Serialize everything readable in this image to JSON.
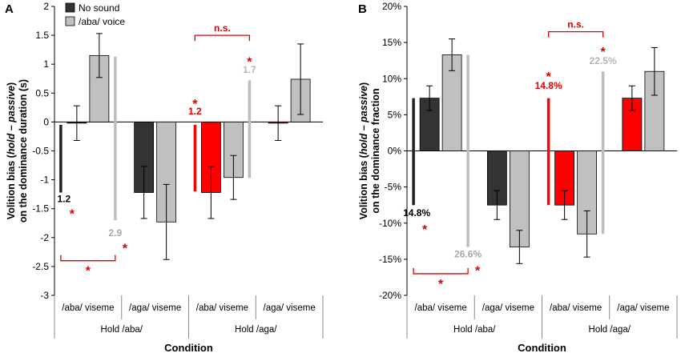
{
  "colors": {
    "no_sound": "#333333",
    "voice": "#c0c0c0",
    "red": "#ff0000",
    "sig_red": "#e00000",
    "dark_bar_black": "#222222",
    "voice_line": "#bdbdbd"
  },
  "legend": {
    "no_sound": "No sound",
    "voice": "/aba/ voice"
  },
  "chart_data": [
    {
      "panel": "A",
      "type": "bar",
      "xlabel": "Condition",
      "ylabel_parts": [
        "Volition bias (",
        "hold",
        " – ",
        "passive",
        ")"
      ],
      "ylabel_line2": "on the dominance duration (s)",
      "ylim": [
        -3,
        2
      ],
      "yticks": [
        -3,
        -2.5,
        -2,
        -1.5,
        -1,
        -0.5,
        0,
        0.5,
        1,
        1.5,
        2
      ],
      "ytick_labels": [
        "-3",
        "-2.5",
        "-2",
        "-1.5",
        "-1",
        "-0.5",
        "0",
        "0.5",
        "1",
        "1.5",
        "2"
      ],
      "categories": [
        "/aba/ viseme",
        "/aga/ viseme",
        "/aba/ viseme",
        "/aga/ viseme"
      ],
      "groups": [
        "Hold /aba/",
        "Hold /aga/"
      ],
      "series": [
        {
          "name": "No sound",
          "values": [
            -0.02,
            -1.22,
            -1.22,
            -0.02
          ],
          "errors": [
            0.3,
            0.45,
            0.45,
            0.3
          ],
          "colors": [
            "no_sound",
            "no_sound",
            "red",
            "red"
          ]
        },
        {
          "name": "/aba/ voice",
          "values": [
            1.15,
            -1.73,
            -0.96,
            0.74
          ],
          "errors": [
            0.38,
            0.65,
            0.38,
            0.61
          ],
          "colors": [
            "voice",
            "voice",
            "voice",
            "voice"
          ]
        }
      ],
      "diff_lines": [
        {
          "color": "dark_bar_black",
          "cat": 0,
          "side": "left",
          "from": -0.05,
          "to": -1.22,
          "label": "1.2",
          "label_color": "#000000",
          "label_y": -1.33,
          "star_y": -1.55,
          "star_color": "#e00000",
          "label_pos": "below"
        },
        {
          "color": "voice_line",
          "cat": 0,
          "side": "right",
          "from": 1.13,
          "to": -1.7,
          "label": "2.9",
          "label_color": "#a8a8a8",
          "label_y": -1.92,
          "star_y": -2.15,
          "star_color": "#e00000",
          "label_pos": "below"
        },
        {
          "color": "red",
          "cat": 2,
          "side": "left",
          "from": -0.05,
          "to": -1.2,
          "label": "1.2",
          "label_color": "#e00000",
          "label_y": 0.13,
          "star_y": 0.35,
          "star_color": "#e00000",
          "label_pos": "above"
        },
        {
          "color": "voice_line",
          "cat": 2,
          "side": "right",
          "from": 0.72,
          "to": -0.97,
          "label": "1.7",
          "label_color": "#b5b5b5",
          "label_y": 0.85,
          "star_y": 1.08,
          "star_color": "#e00000",
          "label_pos": "above"
        }
      ],
      "brackets": [
        {
          "type": "down",
          "cat_from": 0,
          "cat_to": 0,
          "y": -2.4,
          "label": "*"
        },
        {
          "type": "up",
          "cat_from": 2,
          "cat_to": 2,
          "y": 1.5,
          "label": "n.s."
        }
      ]
    },
    {
      "panel": "B",
      "type": "bar",
      "xlabel": "Condition",
      "ylabel_parts": [
        "Volition bias (",
        "hold",
        " – ",
        "passive",
        ")"
      ],
      "ylabel_line2": "on the dominance fraction",
      "ylim": [
        -20,
        20
      ],
      "yticks": [
        -20,
        -15,
        -10,
        -5,
        0,
        5,
        10,
        15,
        20
      ],
      "ytick_labels": [
        "-20%",
        "-15%",
        "-10%",
        "-5%",
        "0%",
        "5%",
        "10%",
        "15%",
        "20%"
      ],
      "categories": [
        "/aba/ viseme",
        "/aga/ viseme",
        "/aba/ viseme",
        "/aga/ viseme"
      ],
      "groups": [
        "Hold /aba/",
        "Hold /aga/"
      ],
      "series": [
        {
          "name": "No sound",
          "values": [
            7.3,
            -7.5,
            -7.5,
            7.3
          ],
          "errors": [
            1.7,
            2.0,
            2.0,
            1.7
          ],
          "colors": [
            "no_sound",
            "no_sound",
            "red",
            "red"
          ]
        },
        {
          "name": "/aba/ voice",
          "values": [
            13.3,
            -13.3,
            -11.5,
            11.0
          ],
          "errors": [
            2.2,
            2.3,
            3.2,
            3.3
          ],
          "colors": [
            "voice",
            "voice",
            "voice",
            "voice"
          ]
        }
      ],
      "diff_lines": [
        {
          "color": "dark_bar_black",
          "cat": 0,
          "side": "left",
          "from": 7.3,
          "to": -7.5,
          "label": "14.8%",
          "label_color": "#000000",
          "label_y": -8.6,
          "star_y": -10.6,
          "star_color": "#e00000",
          "label_pos": "below"
        },
        {
          "color": "voice_line",
          "cat": 0,
          "side": "right",
          "from": 13.3,
          "to": -13.3,
          "label": "26.6%",
          "label_color": "#a8a8a8",
          "label_y": -14.3,
          "star_y": -16.3,
          "star_color": "#e00000",
          "label_pos": "below"
        },
        {
          "color": "red",
          "cat": 2,
          "side": "left",
          "from": 7.3,
          "to": -7.5,
          "label": "14.8%",
          "label_color": "#e00000",
          "label_y": 8.6,
          "star_y": 10.6,
          "star_color": "#e00000",
          "label_pos": "above"
        },
        {
          "color": "voice_line",
          "cat": 2,
          "side": "right",
          "from": 11.0,
          "to": -11.5,
          "label": "22.5%",
          "label_color": "#b5b5b5",
          "label_y": 12.0,
          "star_y": 14.0,
          "star_color": "#e00000",
          "label_pos": "above"
        }
      ],
      "brackets": [
        {
          "type": "down",
          "cat_from": 0,
          "cat_to": 0,
          "y": -17.0,
          "label": "*"
        },
        {
          "type": "up",
          "cat_from": 2,
          "cat_to": 2,
          "y": 16.5,
          "label": "n.s."
        }
      ]
    }
  ]
}
